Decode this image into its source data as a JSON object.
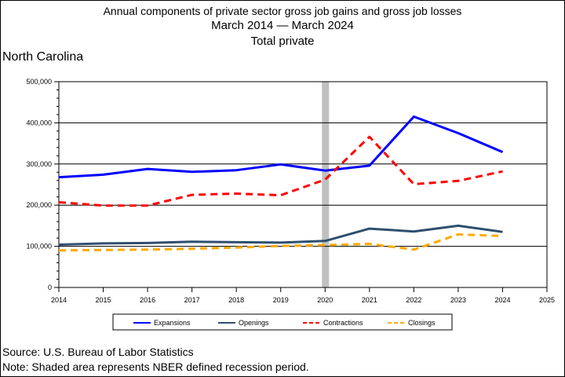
{
  "header": {
    "title_line1": "Annual components of private sector gross job gains and gross job losses",
    "title_line2": "March 2014 — March 2024",
    "title_line3": "Total private"
  },
  "region": "North Carolina",
  "footer": {
    "source": "Source: U.S. Bureau of Labor Statistics",
    "note": "Note: Shaded area represents NBER defined recession period."
  },
  "chart_data": {
    "type": "line",
    "x": [
      2014,
      2015,
      2016,
      2017,
      2018,
      2019,
      2020,
      2021,
      2022,
      2023,
      2024
    ],
    "xticks": [
      "2014",
      "2015",
      "2016",
      "2017",
      "2018",
      "2019",
      "2020",
      "2021",
      "2022",
      "2023",
      "2024",
      "2025"
    ],
    "xlim": [
      2014,
      2025
    ],
    "ylim": [
      0,
      500000
    ],
    "yticks": [
      "0",
      "100,000",
      "200,000",
      "300,000",
      "400,000",
      "500,000"
    ],
    "grid": "horizontal",
    "recession": 2020,
    "legend_position": "bottom",
    "series": [
      {
        "name": "Expansions",
        "color": "#0000ff",
        "dash": "solid",
        "values": [
          268000,
          274000,
          288000,
          281000,
          285000,
          299000,
          284000,
          296000,
          415000,
          375000,
          329000
        ]
      },
      {
        "name": "Openings",
        "color": "#2f4f6f",
        "dash": "solid",
        "values": [
          104000,
          107000,
          108000,
          111000,
          110000,
          109000,
          113000,
          143000,
          136000,
          150000,
          135000
        ]
      },
      {
        "name": "Contractions",
        "color": "#ff0000",
        "dash": "dashed",
        "values": [
          207000,
          199000,
          199000,
          225000,
          228000,
          224000,
          262000,
          366000,
          251000,
          259000,
          282000
        ]
      },
      {
        "name": "Closings",
        "color": "#ffaa00",
        "dash": "dashed",
        "values": [
          90000,
          91000,
          92000,
          94000,
          97000,
          101000,
          103000,
          106000,
          92000,
          129000,
          125000
        ]
      }
    ]
  }
}
